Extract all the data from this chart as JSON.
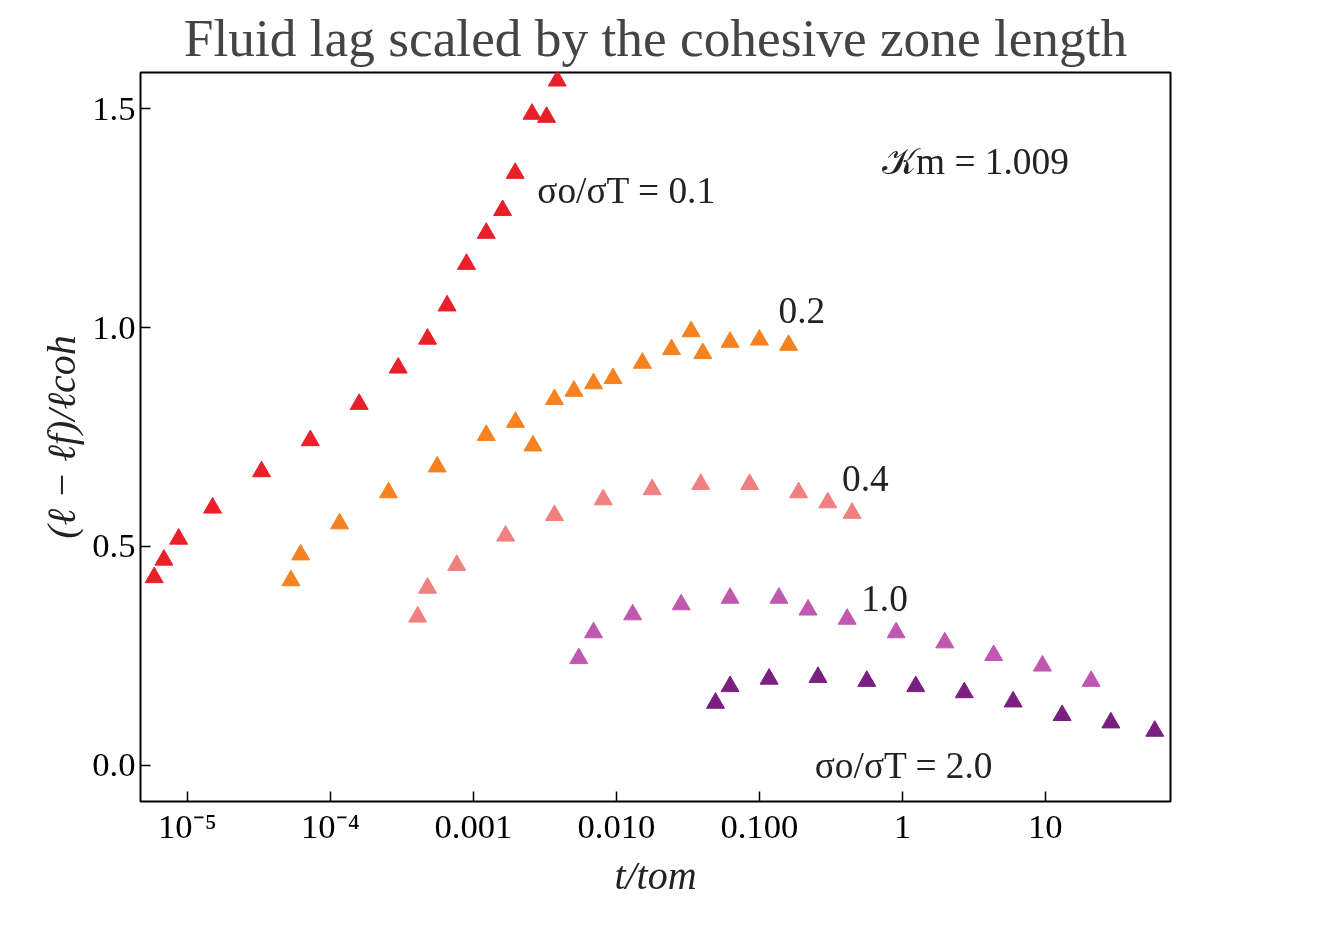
{
  "chart_data": {
    "type": "scatter",
    "title": "Fluid lag scaled by the cohesive zone length",
    "xlabel": "t/tom",
    "ylabel": "(ℓ − ℓf)/ℓcoh",
    "log": "x",
    "grid": false,
    "marker": "triangle",
    "xlim": [
      4.7e-06,
      75
    ],
    "ylim": [
      -0.083,
      1.583
    ],
    "xticks": [
      {
        "value": 1e-05,
        "label": "10⁻⁵"
      },
      {
        "value": 0.0001,
        "label": "10⁻⁴"
      },
      {
        "value": 0.001,
        "label": "0.001"
      },
      {
        "value": 0.01,
        "label": "0.010"
      },
      {
        "value": 0.1,
        "label": "0.100"
      },
      {
        "value": 1,
        "label": "1"
      },
      {
        "value": 10,
        "label": "10"
      }
    ],
    "yticks": [
      {
        "value": 0,
        "label": "0.0"
      },
      {
        "value": 0.5,
        "label": "0.5"
      },
      {
        "value": 1,
        "label": "1.0"
      },
      {
        "value": 1.5,
        "label": "1.5"
      }
    ],
    "annotations": [
      "𝒦m = 1.009"
    ],
    "series": [
      {
        "name": "σo/σT = 0.1",
        "color": "#e8202a",
        "x": [
          5.86e-06,
          6.85e-06,
          8.69e-06,
          1.5e-05,
          3.3e-05,
          7.24e-05,
          0.000159,
          0.000298,
          0.000478,
          0.000655,
          0.000895,
          0.00123,
          0.0016,
          0.00196,
          0.00257,
          0.00325,
          0.00386
        ],
        "values": [
          0.429,
          0.469,
          0.517,
          0.588,
          0.671,
          0.742,
          0.825,
          0.908,
          0.974,
          1.05,
          1.145,
          1.216,
          1.268,
          1.353,
          1.488,
          1.481,
          1.564
        ]
      },
      {
        "name": "0.2",
        "color": "#f58220",
        "x": [
          5.3e-05,
          6.19e-05,
          0.000116,
          0.000255,
          0.000559,
          0.00123,
          0.00197,
          0.00261,
          0.00369,
          0.00505,
          0.00692,
          0.00947,
          0.0152,
          0.0243,
          0.0333,
          0.0402,
          0.0624,
          0.1,
          0.16
        ],
        "values": [
          0.422,
          0.481,
          0.552,
          0.623,
          0.682,
          0.754,
          0.784,
          0.73,
          0.836,
          0.855,
          0.872,
          0.884,
          0.919,
          0.95,
          0.991,
          0.941,
          0.967,
          0.972,
          0.96
        ]
      },
      {
        "name": "0.4",
        "color": "#f08080",
        "x": [
          0.000408,
          0.000478,
          0.000765,
          0.00168,
          0.00369,
          0.00809,
          0.0178,
          0.0389,
          0.0855,
          0.188,
          0.301,
          0.445
        ],
        "values": [
          0.339,
          0.405,
          0.457,
          0.524,
          0.571,
          0.607,
          0.63,
          0.642,
          0.642,
          0.623,
          0.6,
          0.576
        ]
      },
      {
        "name": "1.0",
        "color": "#c058b0",
        "x": [
          0.00546,
          0.00692,
          0.013,
          0.0284,
          0.0624,
          0.137,
          0.219,
          0.411,
          0.904,
          1.98,
          4.35,
          9.54,
          20.9
        ],
        "values": [
          0.244,
          0.303,
          0.344,
          0.367,
          0.382,
          0.382,
          0.355,
          0.334,
          0.303,
          0.28,
          0.251,
          0.227,
          0.192
        ]
      },
      {
        "name": "σo/σT = 2.0",
        "color": "#7a1f82",
        "x": [
          0.0493,
          0.0624,
          0.117,
          0.257,
          0.564,
          1.24,
          2.71,
          5.95,
          13.1,
          28.7,
          58.2
        ],
        "values": [
          0.142,
          0.18,
          0.197,
          0.201,
          0.192,
          0.18,
          0.166,
          0.145,
          0.114,
          0.097,
          0.078
        ]
      }
    ]
  }
}
